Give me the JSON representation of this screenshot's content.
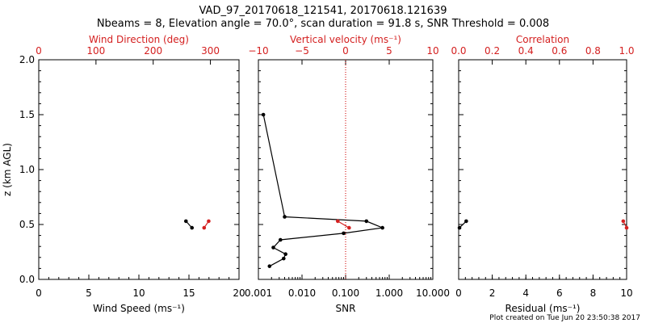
{
  "chart_data": {
    "title": "VAD_97_20170618_121541, 20170618.121639",
    "subtitle": "Nbeams = 8, Elevation angle = 70.0°, scan duration = 91.8 s, SNR Threshold = 0.008",
    "footer": "Plot created on Tue Jun 20 23:50:38 2017",
    "colors": {
      "axis": "#000000",
      "secondary": "#d42020"
    },
    "y_axis": {
      "label": "z (km AGL)",
      "range": [
        0.0,
        2.0
      ],
      "ticks": [
        "0.0",
        "0.5",
        "1.0",
        "1.5",
        "2.0"
      ],
      "tick_values": [
        0.0,
        0.5,
        1.0,
        1.5,
        2.0
      ]
    },
    "panels": [
      {
        "name": "wind",
        "type": "line",
        "bottom_axis": {
          "label": "Wind Speed (ms⁻¹)",
          "range": [
            0,
            20
          ],
          "ticks": [
            "0",
            "5",
            "10",
            "15",
            "20"
          ],
          "tick_values": [
            0,
            5,
            10,
            15,
            20
          ]
        },
        "top_axis": {
          "label": "Wind Direction (deg)",
          "range": [
            0,
            350
          ],
          "ticks": [
            "0",
            "100",
            "200",
            "300"
          ],
          "tick_values": [
            0,
            100,
            200,
            300
          ]
        },
        "series": [
          {
            "name": "Wind Speed",
            "color": "#000000",
            "x": [
              14.7,
              15.3
            ],
            "z": [
              0.53,
              0.47
            ]
          },
          {
            "name": "Wind Direction",
            "color": "#d42020",
            "x": [
              297,
              289
            ],
            "z": [
              0.53,
              0.47
            ]
          }
        ]
      },
      {
        "name": "snr",
        "type": "line",
        "scale": "log",
        "bottom_axis": {
          "label": "SNR",
          "range": [
            0.001,
            10
          ],
          "ticks": [
            "0.001",
            "0.010",
            "0.100",
            "1.000",
            "10.000"
          ],
          "tick_values": [
            0.001,
            0.01,
            0.1,
            1,
            10
          ]
        },
        "top_axis": {
          "label": "Vertical velocity (ms⁻¹)",
          "range": [
            -10,
            10
          ],
          "ticks": [
            "−10",
            "−5",
            "0",
            "5",
            "10"
          ],
          "tick_values": [
            -10,
            -5,
            0,
            5,
            10
          ]
        },
        "reference_line": {
          "axis": "top",
          "value": 0,
          "style": "dotted"
        },
        "series": [
          {
            "name": "SNR",
            "color": "#000000",
            "x": [
              0.0013,
              0.004,
              0.3,
              0.7,
              0.09,
              0.0032,
              0.0022,
              0.0042,
              0.0038,
              0.0018
            ],
            "z": [
              1.5,
              0.57,
              0.53,
              0.47,
              0.42,
              0.36,
              0.29,
              0.23,
              0.19,
              0.12
            ]
          },
          {
            "name": "Vertical velocity",
            "color": "#d42020",
            "x": [
              -0.9,
              0.4
            ],
            "z": [
              0.53,
              0.47
            ]
          }
        ]
      },
      {
        "name": "residual",
        "type": "line",
        "bottom_axis": {
          "label": "Residual (ms⁻¹)",
          "range": [
            0,
            10
          ],
          "ticks": [
            "0",
            "2",
            "4",
            "6",
            "8",
            "10"
          ],
          "tick_values": [
            0,
            2,
            4,
            6,
            8,
            10
          ]
        },
        "top_axis": {
          "label": "Correlation",
          "range": [
            0.0,
            1.0
          ],
          "ticks": [
            "0.0",
            "0.2",
            "0.4",
            "0.6",
            "0.8",
            "1.0"
          ],
          "tick_values": [
            0.0,
            0.2,
            0.4,
            0.6,
            0.8,
            1.0
          ]
        },
        "series": [
          {
            "name": "Residual",
            "color": "#000000",
            "x": [
              0.45,
              0.05
            ],
            "z": [
              0.53,
              0.47
            ]
          },
          {
            "name": "Correlation",
            "color": "#d42020",
            "x": [
              0.98,
              1.0
            ],
            "z": [
              0.53,
              0.47
            ]
          }
        ]
      }
    ]
  }
}
